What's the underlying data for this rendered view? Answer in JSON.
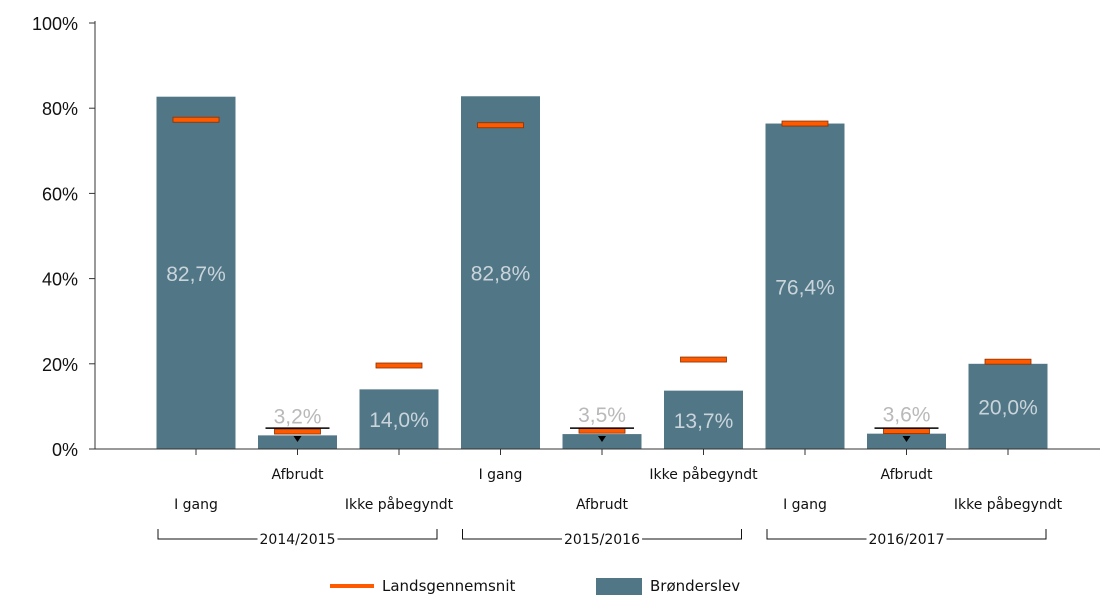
{
  "colors": {
    "bar": "#517686",
    "avg_fill": "#ff5a00",
    "avg_edge": "#8a3000",
    "axis": "#333333",
    "data_label": "#c9d4db",
    "data_label_small": "#b9b9b9"
  },
  "chart_data": {
    "type": "bar",
    "ylim": [
      0,
      100
    ],
    "yticks": [
      0,
      20,
      40,
      60,
      80,
      100
    ],
    "ytick_labels": [
      "0%",
      "20%",
      "40%",
      "60%",
      "80%",
      "100%"
    ],
    "groups": [
      {
        "label": "2014/2015",
        "categories": [
          "I gang",
          "Afbrudt",
          "Ikke påbegyndt"
        ],
        "values": [
          82.7,
          3.2,
          14.0
        ],
        "value_labels": [
          "82,7%",
          "3,2%",
          "14,0%"
        ],
        "averages": [
          77.3,
          4.1,
          19.6
        ]
      },
      {
        "label": "2015/2016",
        "categories": [
          "I gang",
          "Afbrudt",
          "Ikke påbegyndt"
        ],
        "values": [
          82.8,
          3.5,
          13.7
        ],
        "value_labels": [
          "82,8%",
          "3,5%",
          "13,7%"
        ],
        "averages": [
          76.0,
          4.3,
          21.0
        ]
      },
      {
        "label": "2016/2017",
        "categories": [
          "I gang",
          "Afbrudt",
          "Ikke påbegyndt"
        ],
        "values": [
          76.4,
          3.6,
          20.0
        ],
        "value_labels": [
          "76,4%",
          "3,6%",
          "20,0%"
        ],
        "averages": [
          76.4,
          4.2,
          20.5
        ]
      }
    ],
    "series": [
      {
        "name": "Landsgennemsnit",
        "kind": "marker"
      },
      {
        "name": "Brønderslev",
        "kind": "bar"
      }
    ],
    "legend_position": "bottom-center",
    "grid": false
  }
}
